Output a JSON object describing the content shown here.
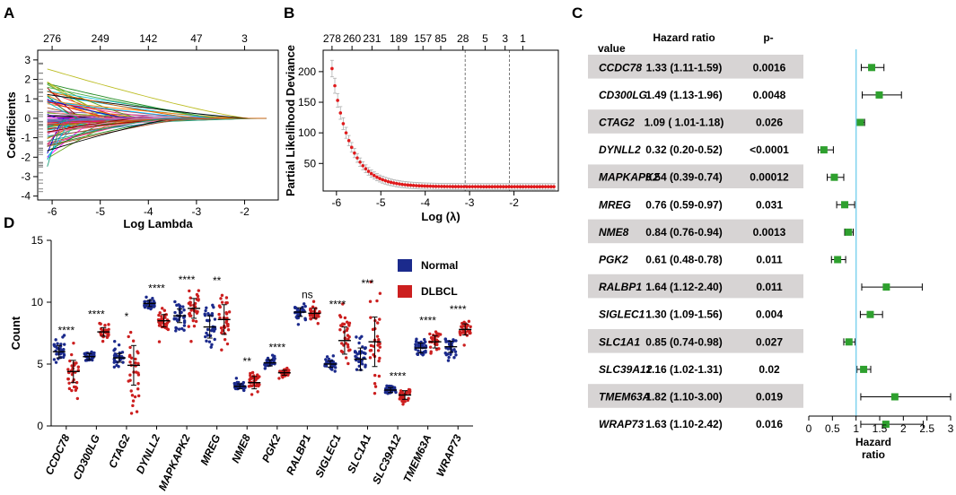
{
  "panel_labels": [
    "A",
    "B",
    "C",
    "D"
  ],
  "chart_data": [
    {
      "panel": "A",
      "type": "line",
      "title": "",
      "xlabel": "Log Lambda",
      "ylabel": "Coefficients",
      "xlim": [
        -6.3,
        -1.3
      ],
      "ylim": [
        -4.2,
        3.5
      ],
      "x_ticks": [
        -6,
        -5,
        -4,
        -3,
        -2
      ],
      "y_ticks": [
        -4,
        -3,
        -2,
        -1,
        0,
        1,
        2,
        3
      ],
      "top_axis_ticks": [
        {
          "x": -6,
          "label": "276"
        },
        {
          "x": -5,
          "label": "249"
        },
        {
          "x": -4,
          "label": "142"
        },
        {
          "x": -3,
          "label": "47"
        },
        {
          "x": -2,
          "label": "3"
        }
      ],
      "n_paths": 90,
      "lambda_min": -6.1,
      "lambda_max": -1.55
    },
    {
      "panel": "B",
      "type": "line",
      "title": "",
      "xlabel": "Log (λ)",
      "ylabel": "Partial Likelihood Deviance",
      "xlim": [
        -6.3,
        -1.0
      ],
      "ylim": [
        5,
        235
      ],
      "x_ticks": [
        -6,
        -5,
        -4,
        -3,
        -2
      ],
      "y_ticks": [
        50,
        100,
        150,
        200
      ],
      "top_axis_ticks": [
        {
          "x": -6.1,
          "label": "278"
        },
        {
          "x": -5.65,
          "label": "260"
        },
        {
          "x": -5.2,
          "label": "231"
        },
        {
          "x": -4.6,
          "label": "189"
        },
        {
          "x": -4.05,
          "label": "157"
        },
        {
          "x": -3.65,
          "label": "85"
        },
        {
          "x": -3.15,
          "label": "28"
        },
        {
          "x": -2.65,
          "label": "5"
        },
        {
          "x": -2.2,
          "label": "3"
        },
        {
          "x": -1.8,
          "label": "1"
        }
      ],
      "vlines": [
        -3.1,
        -2.1
      ],
      "curve": {
        "x_start": -6.1,
        "x_end": -1.1,
        "y_start": 205,
        "y_floor": 12,
        "decay": 1.6,
        "ci_halfwidth": 12
      }
    },
    {
      "panel": "C",
      "type": "forest",
      "col_headers": [
        "value",
        "Hazard ratio",
        "p-"
      ],
      "x_ticks": [
        0,
        0.5,
        1,
        1.5,
        2,
        2.5,
        3
      ],
      "x_tick_labels": [
        "0",
        "0.5",
        "1",
        "1.5",
        "2",
        "2.5",
        "3"
      ],
      "xlim": [
        0,
        3
      ],
      "reference_line": 1,
      "xlabel_lines": [
        "Hazard",
        "ratio"
      ],
      "rows": [
        {
          "gene": "CCDC78",
          "hr_text": "1.33 (1.11-1.59)",
          "p": "0.0016",
          "hr": 1.33,
          "lo": 1.11,
          "hi": 1.59,
          "shaded": true
        },
        {
          "gene": "CD300LG",
          "hr_text": "1.49 (1.13-1.96)",
          "p": "0.0048",
          "hr": 1.49,
          "lo": 1.13,
          "hi": 1.96,
          "shaded": false
        },
        {
          "gene": "CTAG2",
          "hr_text": "1.09 ( 1.01-1.18)",
          "p": "0.026",
          "hr": 1.09,
          "lo": 1.01,
          "hi": 1.18,
          "shaded": true
        },
        {
          "gene": "DYNLL2",
          "hr_text": "0.32 (0.20-0.52)",
          "p": "<0.0001",
          "hr": 0.32,
          "lo": 0.2,
          "hi": 0.52,
          "shaded": false
        },
        {
          "gene": "MAPKAPK2",
          "hr_text": "0.54 (0.39-0.74)",
          "p": "0.00012",
          "hr": 0.54,
          "lo": 0.39,
          "hi": 0.74,
          "shaded": true
        },
        {
          "gene": "MREG",
          "hr_text": "0.76 (0.59-0.97)",
          "p": "0.031",
          "hr": 0.76,
          "lo": 0.59,
          "hi": 0.97,
          "shaded": false
        },
        {
          "gene": "NME8",
          "hr_text": "0.84 (0.76-0.94)",
          "p": "0.0013",
          "hr": 0.84,
          "lo": 0.76,
          "hi": 0.94,
          "shaded": true
        },
        {
          "gene": "PGK2",
          "hr_text": "0.61 (0.48-0.78)",
          "p": "0.011",
          "hr": 0.61,
          "lo": 0.48,
          "hi": 0.78,
          "shaded": false
        },
        {
          "gene": "RALBP1",
          "hr_text": "1.64 (1.12-2.40)",
          "p": "0.011",
          "hr": 1.64,
          "lo": 1.12,
          "hi": 2.4,
          "shaded": true
        },
        {
          "gene": "SIGLEC1",
          "hr_text": "1.30 (1.09-1.56)",
          "p": "0.004",
          "hr": 1.3,
          "lo": 1.09,
          "hi": 1.56,
          "shaded": false
        },
        {
          "gene": "SLC1A1",
          "hr_text": "0.85 (0.74-0.98)",
          "p": "0.027",
          "hr": 0.85,
          "lo": 0.74,
          "hi": 0.98,
          "shaded": true
        },
        {
          "gene": "SLC39A12",
          "hr_text": "1.16 (1.02-1.31)",
          "p": "0.02",
          "hr": 1.16,
          "lo": 1.02,
          "hi": 1.31,
          "shaded": false
        },
        {
          "gene": "TMEM63A",
          "hr_text": "1.82 (1.10-3.00)",
          "p": "0.019",
          "hr": 1.82,
          "lo": 1.1,
          "hi": 3.0,
          "shaded": true
        },
        {
          "gene": "WRAP73",
          "hr_text": "1.63 (1.10-2.42)",
          "p": "0.016",
          "hr": 1.63,
          "lo": 1.1,
          "hi": 2.42,
          "shaded": false
        }
      ]
    },
    {
      "panel": "D",
      "type": "scatter",
      "ylabel": "Count",
      "ylim": [
        0,
        15
      ],
      "y_ticks": [
        0,
        5,
        10,
        15
      ],
      "legend": [
        {
          "name": "Normal",
          "color": "#1b2a8c"
        },
        {
          "name": "DLBCL",
          "color": "#cc1f1f"
        }
      ],
      "categories": [
        "CCDC78",
        "CD300LG",
        "CTAG2",
        "DYNLL2",
        "MAPKAPK2",
        "MREG",
        "NME8",
        "PGK2",
        "RALBP1",
        "SIGLEC1",
        "SLC1A1",
        "SLC39A12",
        "TMEM63A",
        "WRAP73"
      ],
      "significance": [
        "****",
        "****",
        "*",
        "****",
        "****",
        "**",
        "**",
        "****",
        "ns",
        "****",
        "***",
        "****",
        "****",
        "****"
      ],
      "series": [
        {
          "name": "Normal",
          "means": [
            6.0,
            5.6,
            5.5,
            9.9,
            8.9,
            8.0,
            3.2,
            5.1,
            9.2,
            5.0,
            5.4,
            2.9,
            6.3,
            6.4
          ],
          "sds": [
            0.5,
            0.25,
            0.35,
            0.25,
            0.55,
            0.9,
            0.2,
            0.25,
            0.35,
            0.25,
            0.9,
            0.2,
            0.4,
            0.45
          ]
        },
        {
          "name": "DLBCL",
          "means": [
            4.4,
            7.6,
            4.9,
            8.5,
            9.5,
            8.6,
            3.5,
            4.3,
            9.1,
            6.9,
            6.8,
            2.5,
            6.8,
            7.8
          ],
          "sds": [
            0.9,
            0.35,
            1.6,
            0.5,
            0.8,
            1.2,
            0.5,
            0.2,
            0.4,
            1.1,
            2.0,
            0.35,
            0.5,
            0.45
          ]
        }
      ]
    }
  ]
}
